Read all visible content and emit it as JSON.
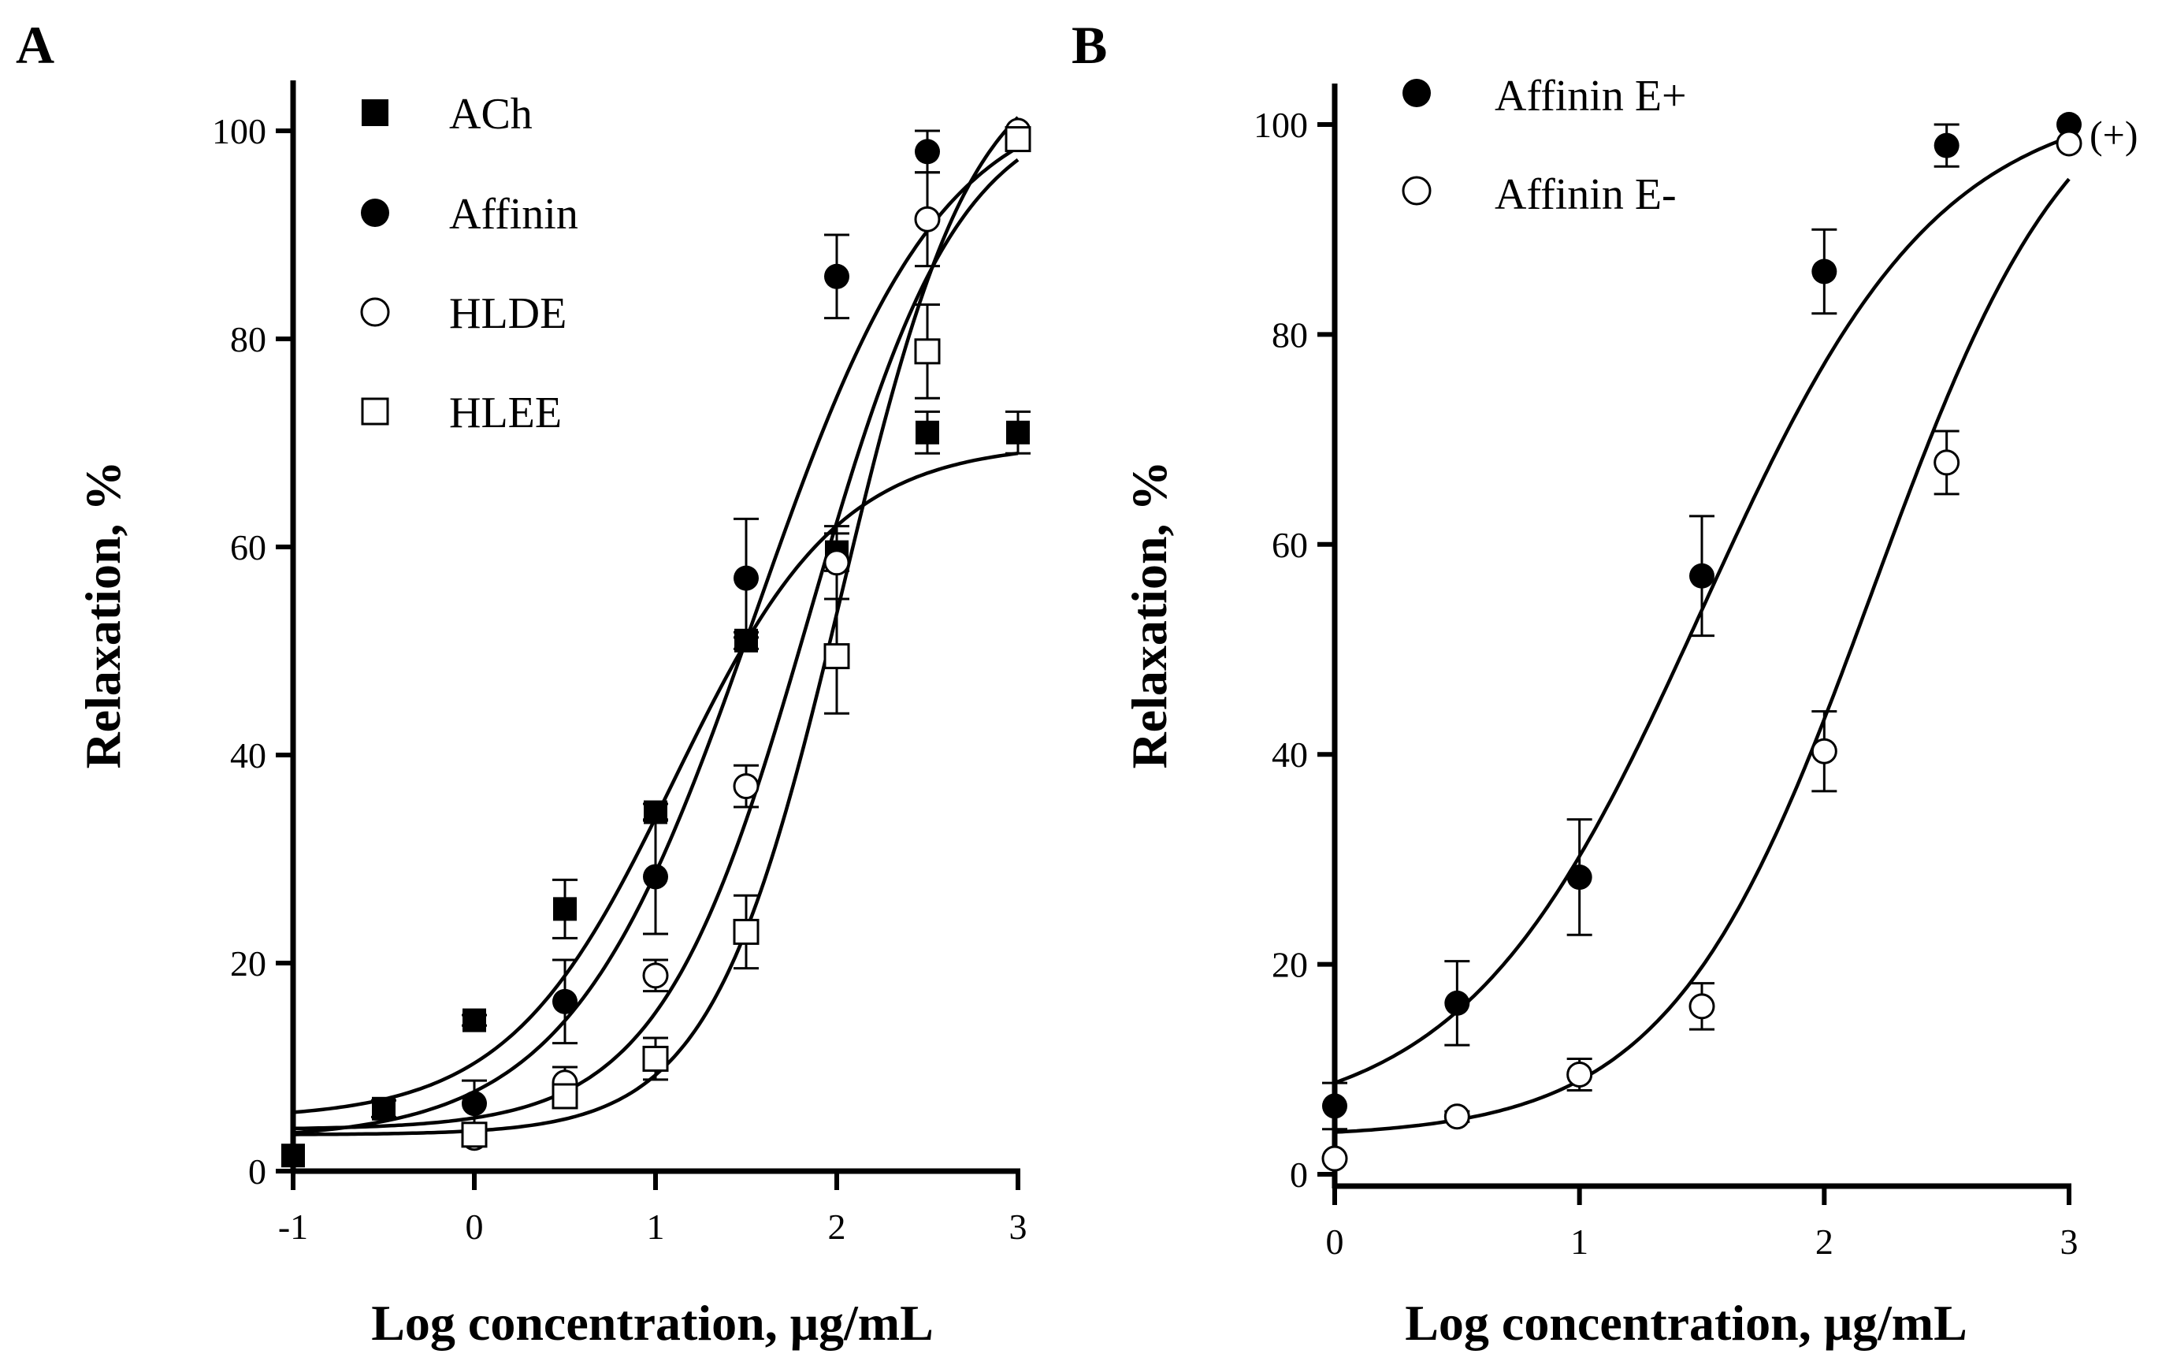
{
  "chart_data": [
    {
      "panel": "A",
      "type": "scatter",
      "xlabel": "Log concentration, μg/mL",
      "ylabel": "Relaxation, %",
      "xlim": [
        -1,
        3
      ],
      "ylim": [
        0,
        105
      ],
      "xticks": [
        -1,
        0,
        1,
        2,
        3
      ],
      "yticks": [
        0,
        20,
        40,
        60,
        80,
        100
      ],
      "legend_position": "top-left",
      "grid": false,
      "series": [
        {
          "name": "ACh",
          "marker": "filled-square",
          "points": [
            {
              "x": -1,
              "y": 1.5,
              "err": 0
            },
            {
              "x": -0.5,
              "y": 6,
              "err": 0.8
            },
            {
              "x": 0,
              "y": 14.5,
              "err": 0.5
            },
            {
              "x": 0.5,
              "y": 25.2,
              "err": 2.8
            },
            {
              "x": 1,
              "y": 34.5,
              "err": 0.8
            },
            {
              "x": 1.5,
              "y": 51,
              "err": 0.8
            },
            {
              "x": 2,
              "y": 59.5,
              "err": 1.8
            },
            {
              "x": 2.5,
              "y": 71,
              "err": 2
            },
            {
              "x": 3,
              "y": 71,
              "err": 2
            }
          ],
          "fit": {
            "bottom": 5,
            "top": 70,
            "logEC50": 1.1,
            "hill": 0.95
          }
        },
        {
          "name": "Affinin",
          "marker": "filled-circle",
          "points": [
            {
              "x": 0,
              "y": 6.5,
              "err": 2.2
            },
            {
              "x": 0.5,
              "y": 16.3,
              "err": 4
            },
            {
              "x": 1,
              "y": 28.3,
              "err": 5.5
            },
            {
              "x": 1.5,
              "y": 57,
              "err": 5.7
            },
            {
              "x": 2,
              "y": 86,
              "err": 4
            },
            {
              "x": 2.5,
              "y": 98,
              "err": 2
            },
            {
              "x": 3,
              "y": 100,
              "err": 0
            }
          ],
          "fit": {
            "bottom": 3,
            "top": 104,
            "logEC50": 1.55,
            "hill": 0.85
          }
        },
        {
          "name": "HLDE",
          "marker": "open-circle",
          "points": [
            {
              "x": 0,
              "y": 3.2,
              "err": 0.8
            },
            {
              "x": 0.5,
              "y": 8.5,
              "err": 1.5
            },
            {
              "x": 1,
              "y": 18.8,
              "err": 1.5
            },
            {
              "x": 1.5,
              "y": 37,
              "err": 2
            },
            {
              "x": 2,
              "y": 58.5,
              "err": 3.5
            },
            {
              "x": 2.5,
              "y": 91.5,
              "err": 4.5
            },
            {
              "x": 3,
              "y": 100,
              "err": 0
            }
          ],
          "fit": {
            "bottom": 4,
            "top": 103,
            "logEC50": 1.85,
            "hill": 1.05
          }
        },
        {
          "name": "HLEE",
          "marker": "open-square",
          "points": [
            {
              "x": 0,
              "y": 3.5,
              "err": 0.8
            },
            {
              "x": 0.5,
              "y": 7.2,
              "err": 1
            },
            {
              "x": 1,
              "y": 10.8,
              "err": 2
            },
            {
              "x": 1.5,
              "y": 23,
              "err": 3.5
            },
            {
              "x": 2,
              "y": 49.5,
              "err": 5.5
            },
            {
              "x": 2.5,
              "y": 78.8,
              "err": 4.5
            },
            {
              "x": 3,
              "y": 99.2,
              "err": 0
            }
          ],
          "fit": {
            "bottom": 3.5,
            "top": 108,
            "logEC50": 2.03,
            "hill": 1.2
          }
        }
      ]
    },
    {
      "panel": "B",
      "type": "scatter",
      "xlabel": "Log concentration, μg/mL",
      "ylabel": "Relaxation, %",
      "xlim": [
        0,
        3
      ],
      "ylim": [
        0,
        105
      ],
      "xticks": [
        0,
        1,
        2,
        3
      ],
      "yticks": [
        0,
        20,
        40,
        60,
        80,
        100
      ],
      "legend_position": "top-left",
      "grid": false,
      "annotation": "(+)",
      "series": [
        {
          "name": "Affinin E+",
          "marker": "filled-circle",
          "points": [
            {
              "x": 0,
              "y": 6.5,
              "err": 2.2
            },
            {
              "x": 0.5,
              "y": 16.3,
              "err": 4
            },
            {
              "x": 1,
              "y": 28.3,
              "err": 5.5
            },
            {
              "x": 1.5,
              "y": 57,
              "err": 5.7
            },
            {
              "x": 2,
              "y": 86,
              "err": 4
            },
            {
              "x": 2.5,
              "y": 98,
              "err": 2
            },
            {
              "x": 3,
              "y": 100,
              "err": 0
            }
          ],
          "fit": {
            "bottom": 4.5,
            "top": 103,
            "logEC50": 1.5,
            "hill": 0.9
          }
        },
        {
          "name": "Affinin E-",
          "marker": "open-circle",
          "points": [
            {
              "x": 0,
              "y": 1.5,
              "err": 0
            },
            {
              "x": 0.5,
              "y": 5.5,
              "err": 0.5
            },
            {
              "x": 1,
              "y": 9.5,
              "err": 1.5
            },
            {
              "x": 1.5,
              "y": 16,
              "err": 2.2
            },
            {
              "x": 2,
              "y": 40.3,
              "err": 3.8
            },
            {
              "x": 2.5,
              "y": 67.8,
              "err": 3
            },
            {
              "x": 3,
              "y": 98.2,
              "err": 0
            }
          ],
          "fit": {
            "bottom": 3.5,
            "top": 108,
            "logEC50": 2.2,
            "hill": 1.05
          }
        }
      ]
    }
  ],
  "panel_labels": {
    "a": "A",
    "b": "B"
  },
  "icons": {
    "filled-square": "filled-square-marker-icon",
    "filled-circle": "filled-circle-marker-icon",
    "open-circle": "open-circle-marker-icon",
    "open-square": "open-square-marker-icon"
  },
  "colors": {
    "ink": "#000000",
    "background": "#ffffff"
  }
}
